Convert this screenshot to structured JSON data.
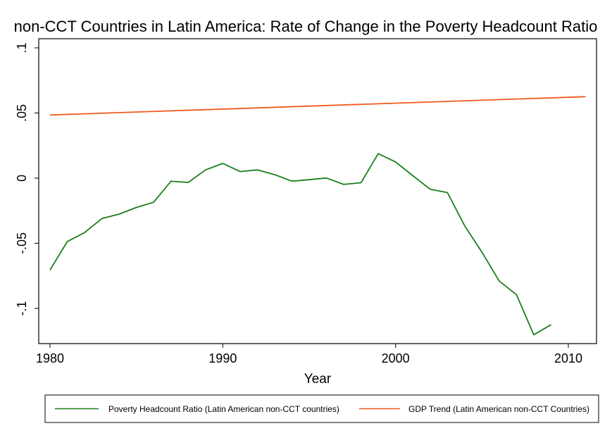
{
  "chart_data": {
    "type": "line",
    "title": "non-CCT Countries in Latin America: Rate of Change in the Poverty Headcount Ratio",
    "xlabel": "Year",
    "ylabel": "",
    "xlim": [
      1980,
      2011
    ],
    "ylim": [
      -0.127,
      0.107
    ],
    "x_ticks": [
      1980,
      1990,
      2000,
      2010
    ],
    "x_tick_labels": [
      "1980",
      "1990",
      "2000",
      "2010"
    ],
    "y_ticks": [
      0.1,
      0.05,
      0,
      -0.05,
      -0.1
    ],
    "y_tick_labels": [
      ".1",
      ".05",
      "0",
      "-.05",
      "-.1"
    ],
    "grid": false,
    "legend_position": "bottom",
    "series": [
      {
        "name": "Poverty Headcount Ratio (Latin American non-CCT countries)",
        "color": "#1a7f1a",
        "x": [
          1980,
          1981,
          1982,
          1983,
          1984,
          1985,
          1986,
          1987,
          1988,
          1989,
          1990,
          1991,
          1992,
          1993,
          1994,
          1995,
          1996,
          1997,
          1998,
          1999,
          2000,
          2001,
          2002,
          2003,
          2004,
          2005,
          2006,
          2007,
          2008,
          2009
        ],
        "y": [
          -0.0705,
          -0.0487,
          -0.0418,
          -0.031,
          -0.0276,
          -0.0225,
          -0.0185,
          -0.0024,
          -0.0033,
          0.0063,
          0.0113,
          0.0051,
          0.0063,
          0.0027,
          -0.0023,
          -0.0012,
          0.0001,
          -0.0048,
          -0.0035,
          0.0188,
          0.0124,
          0.0019,
          -0.0085,
          -0.0111,
          -0.0366,
          -0.0568,
          -0.079,
          -0.0895,
          -0.1202,
          -0.1125
        ]
      },
      {
        "name": "GDP Trend (Latin American non-CCT Countries)",
        "color": "#f05a1e",
        "x": [
          1980,
          2011
        ],
        "y": [
          0.0485,
          0.0625
        ]
      }
    ]
  }
}
